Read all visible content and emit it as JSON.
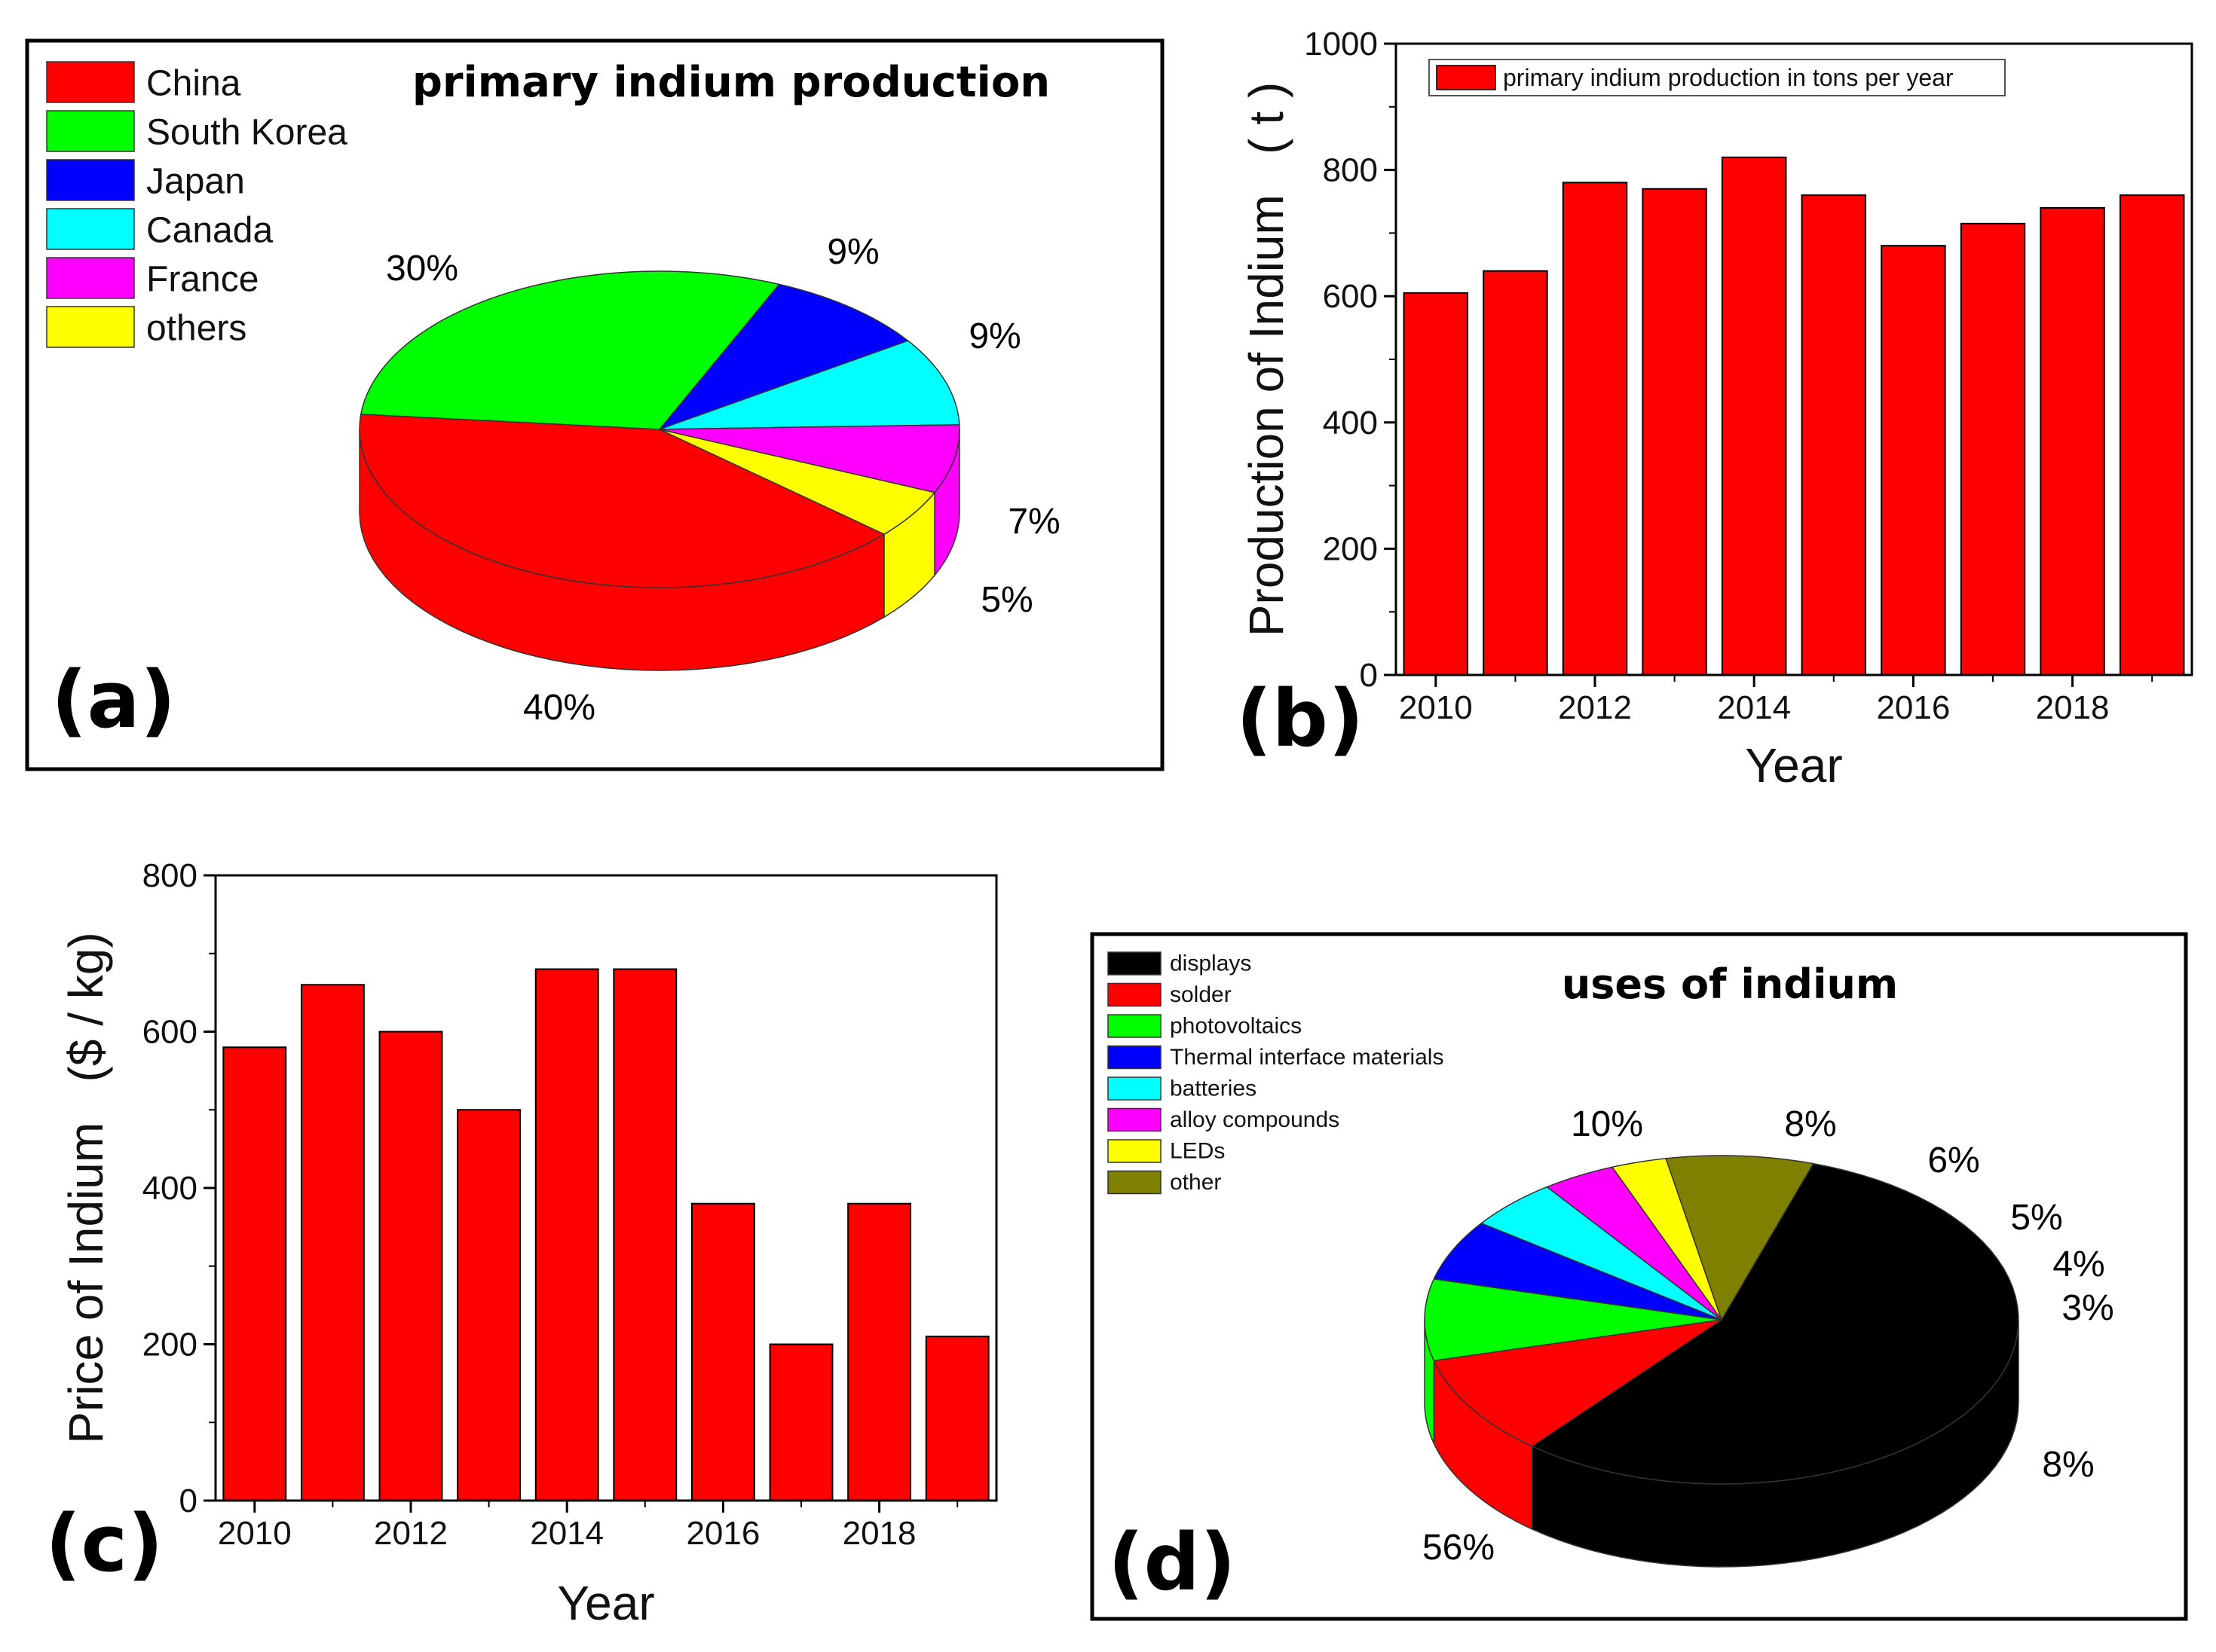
{
  "chart_data": [
    {
      "panel": "(a)",
      "type": "pie",
      "style": "3d",
      "title": "primary indium production",
      "legend_position": "top-left",
      "slices": [
        {
          "label": "China",
          "value": 40,
          "display": "40%",
          "color": "#ff0000"
        },
        {
          "label": "South Korea",
          "value": 30,
          "display": "30%",
          "color": "#00ff00"
        },
        {
          "label": "Japan",
          "value": 9,
          "display": "9%",
          "color": "#0000ff"
        },
        {
          "label": "Canada",
          "value": 9,
          "display": "9%",
          "color": "#00ffff"
        },
        {
          "label": "France",
          "value": 7,
          "display": "7%",
          "color": "#ff00ff"
        },
        {
          "label": "others",
          "value": 5,
          "display": "5%",
          "color": "#ffff00"
        }
      ]
    },
    {
      "panel": "(b)",
      "type": "bar",
      "xlabel": "Year",
      "ylabel": "Production of Indium   ( t )",
      "legend": "primary indium production in tons per year",
      "legend_position": "top-left",
      "ylim": [
        0,
        1000
      ],
      "yticks": [
        0,
        200,
        400,
        600,
        800,
        1000
      ],
      "xticks": [
        2010,
        2012,
        2014,
        2016,
        2018
      ],
      "xlim": [
        2009.5,
        2019.5
      ],
      "color": "#ff0000",
      "x": [
        2010,
        2011,
        2012,
        2013,
        2014,
        2015,
        2016,
        2017,
        2018,
        2019
      ],
      "values": [
        605,
        640,
        780,
        770,
        820,
        760,
        680,
        715,
        740,
        760
      ]
    },
    {
      "panel": "(c)",
      "type": "bar",
      "xlabel": "Year",
      "ylabel": "Price of Indium   ($ / kg)",
      "ylim": [
        0,
        800
      ],
      "yticks": [
        0,
        200,
        400,
        600,
        800
      ],
      "xticks": [
        2010,
        2012,
        2014,
        2016,
        2018
      ],
      "xlim": [
        2009.5,
        2019.5
      ],
      "color": "#ff0000",
      "x": [
        2010,
        2011,
        2012,
        2013,
        2014,
        2015,
        2016,
        2017,
        2018,
        2019
      ],
      "values": [
        580,
        660,
        600,
        500,
        680,
        680,
        380,
        200,
        380,
        210
      ]
    },
    {
      "panel": "(d)",
      "type": "pie",
      "style": "3d",
      "title": "uses of indium",
      "legend_position": "top-left",
      "slices": [
        {
          "label": "displays",
          "value": 56,
          "display": "56%",
          "color": "#000000"
        },
        {
          "label": "solder",
          "value": 10,
          "display": "10%",
          "color": "#ff0000"
        },
        {
          "label": "photovoltaics",
          "value": 8,
          "display": "8%",
          "color": "#00ff00"
        },
        {
          "label": "Thermal interface materials",
          "value": 6,
          "display": "6%",
          "color": "#0000ff"
        },
        {
          "label": "batteries",
          "value": 5,
          "display": "5%",
          "color": "#00ffff"
        },
        {
          "label": "alloy compounds",
          "value": 4,
          "display": "4%",
          "color": "#ff00ff"
        },
        {
          "label": "LEDs",
          "value": 3,
          "display": "3%",
          "color": "#ffff00"
        },
        {
          "label": "other",
          "value": 8,
          "display": "8%",
          "color": "#808000"
        }
      ]
    }
  ]
}
